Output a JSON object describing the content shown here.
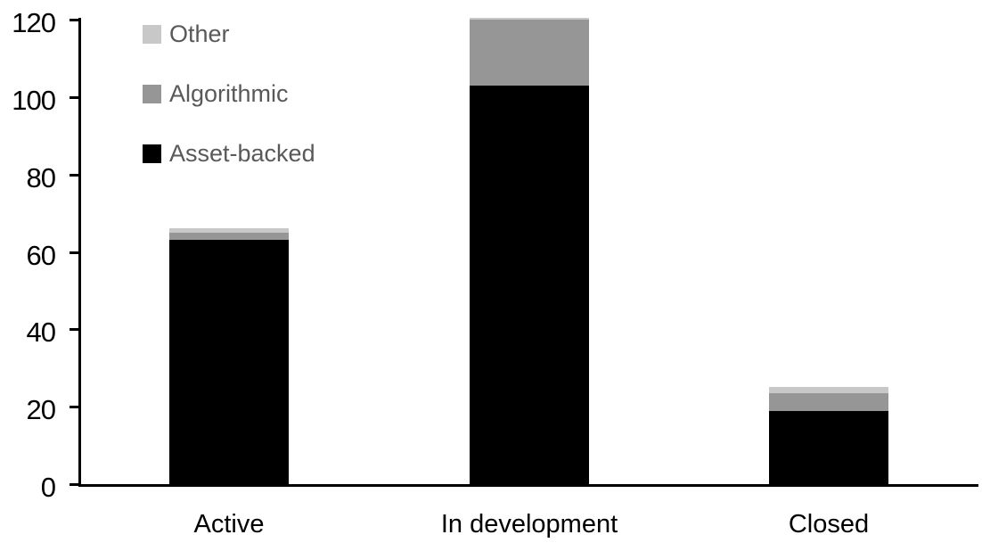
{
  "chart_data": {
    "type": "bar",
    "stacked": true,
    "title": "",
    "xlabel": "",
    "ylabel": "",
    "categories": [
      "Active",
      "In development",
      "Closed"
    ],
    "series": [
      {
        "name": "Asset-backed",
        "color": "#000000",
        "values": [
          63,
          103,
          19
        ]
      },
      {
        "name": "Algorithmic",
        "color": "#969696",
        "values": [
          2,
          17,
          4.5
        ]
      },
      {
        "name": "Other",
        "color": "#C8C8C8",
        "values": [
          1,
          0.5,
          1.5
        ]
      }
    ],
    "totals": [
      66,
      120.5,
      25
    ],
    "y_axis": {
      "min": 0,
      "max": 120,
      "tick_interval": 20,
      "ticks": [
        "0",
        "20",
        "40",
        "60",
        "80",
        "100",
        "120"
      ]
    },
    "grid": false,
    "legend": {
      "position": "top-left",
      "order": [
        "Other",
        "Algorithmic",
        "Asset-backed"
      ]
    }
  },
  "colors": {
    "background": "#FFFFFF",
    "axis": "#000000",
    "tick_label_text": "#000000",
    "category_label_text": "#000000",
    "legend_text": "#595959"
  }
}
